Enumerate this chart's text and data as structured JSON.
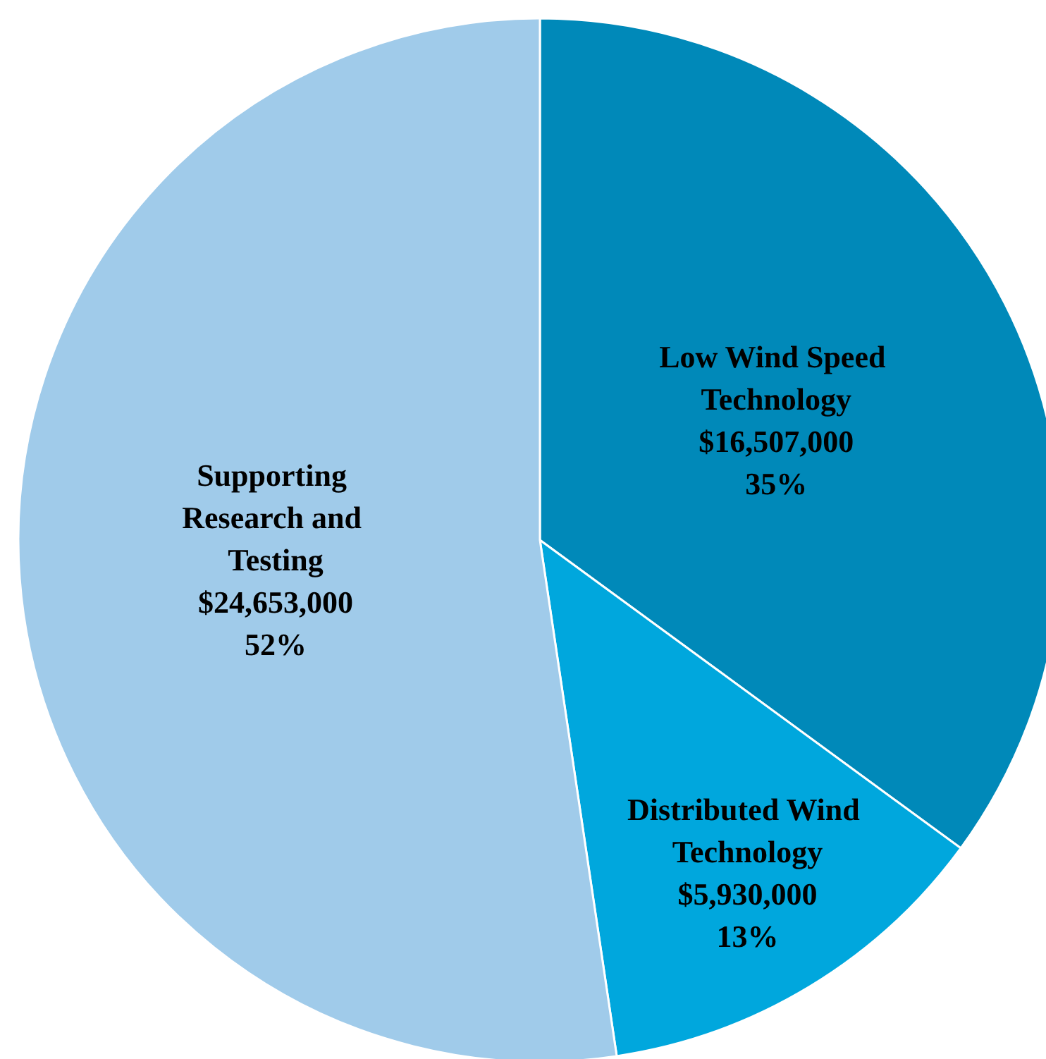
{
  "chart_data": {
    "type": "pie",
    "categories": [
      "Low Wind Speed Technology",
      "Distributed Wind Technology",
      "Supporting Research and Testing"
    ],
    "values": [
      16507000,
      5930000,
      24653000
    ],
    "value_labels": [
      "$16,507,000\n35%",
      "$5,930,000\n13%",
      "$24,653,000\n52%"
    ],
    "colors": [
      "#0089b9",
      "#00a7dd",
      "#a0cbea"
    ],
    "legend": false
  }
}
